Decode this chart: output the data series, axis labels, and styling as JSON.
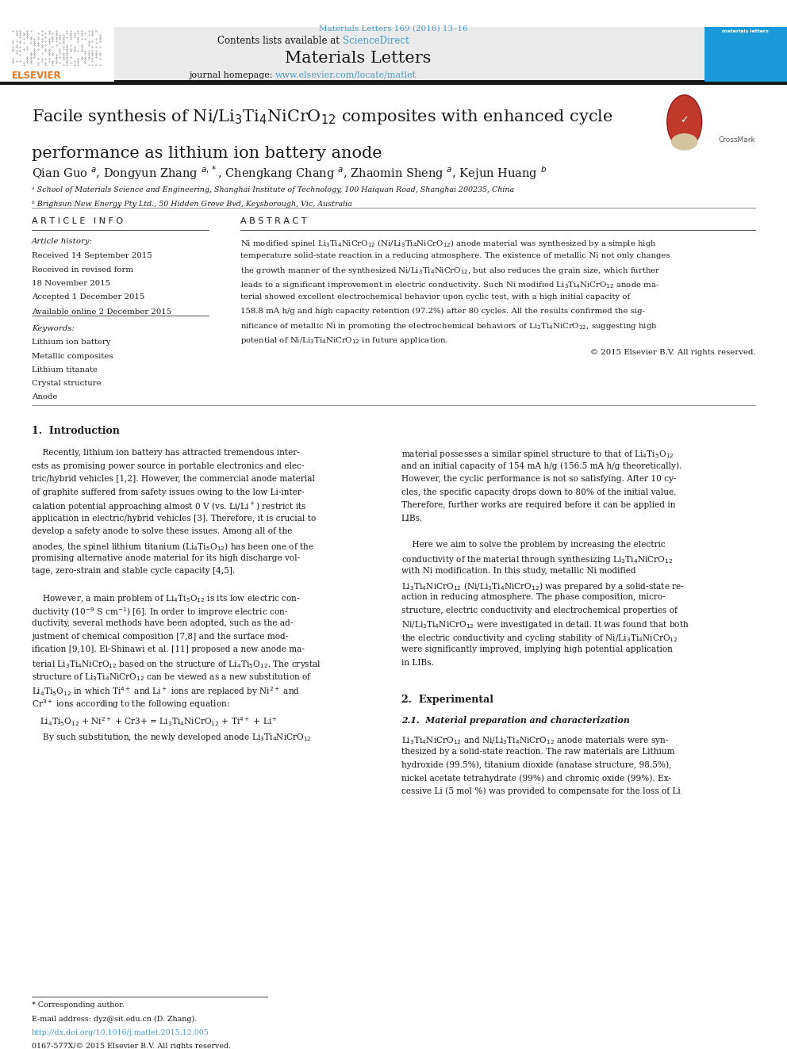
{
  "page_width": 9.92,
  "page_height": 13.23,
  "background_color": "#ffffff",
  "top_citation": "Materials Letters 169 (2016) 13–16",
  "top_citation_color": "#4a9cc7",
  "header_bg": "#e8e8e8",
  "journal_title": "Materials Letters",
  "journal_homepage_url": "www.elsevier.com/locate/matlet",
  "journal_homepage_color": "#4a9cc7",
  "divider_color": "#1a1a1a",
  "affil_a": "ᵃ School of Materials Science and Engineering, Shanghai Institute of Technology, 100 Haiquan Road, Shanghai 200235, China",
  "affil_b": "ᵇ Brighsun New Energy Pty Ltd., 50 Hidden Grove Bvd, Keysborough, Vic, Australia",
  "article_info_title": "A R T I C L E   I N F O",
  "abstract_title": "A B S T R A C T",
  "article_history_label": "Article history:",
  "received": "Received 14 September 2015",
  "received_revised": "Received in revised form",
  "date_revised": "18 November 2015",
  "accepted": "Accepted 1 December 2015",
  "available": "Available online 2 December 2015",
  "keywords_label": "Keywords:",
  "keywords": [
    "Lithium ion battery",
    "Metallic composites",
    "Lithium titanate",
    "Crystal structure",
    "Anode"
  ],
  "copyright": "© 2015 Elsevier B.V. All rights reserved.",
  "section1_title": "1.  Introduction",
  "section2_title": "2.  Experimental",
  "section21_title": "2.1.  Material preparation and characterization",
  "footnote_star": "* Corresponding author.",
  "footnote_email": "E-mail address: dyz@sit.edu.cn (D. Zhang).",
  "footnote_doi": "http://dx.doi.org/10.1016/j.matlet.2015.12.005",
  "footnote_issn": "0167-577X/© 2015 Elsevier B.V. All rights reserved."
}
